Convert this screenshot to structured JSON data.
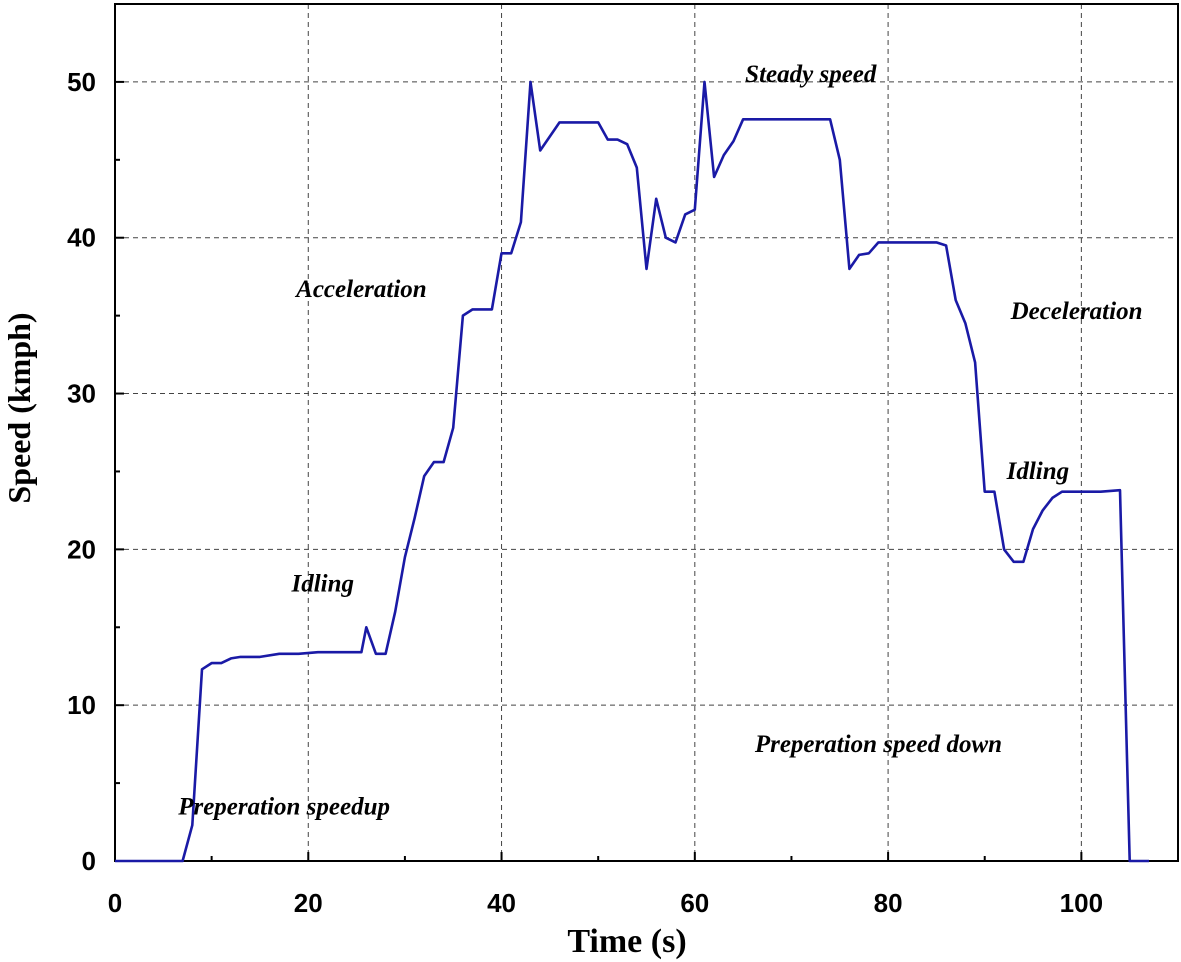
{
  "chart_data": {
    "type": "line",
    "title": "",
    "xlabel": "Time (s)",
    "ylabel": "Speed (kmph)",
    "xlim": [
      0,
      110
    ],
    "ylim": [
      0,
      55
    ],
    "xticks": [
      0,
      20,
      40,
      60,
      80,
      100
    ],
    "yticks": [
      0,
      10,
      20,
      30,
      40,
      50
    ],
    "grid": true,
    "series_color": "#1a1aa6",
    "series": [
      {
        "x": [
          0,
          7,
          8,
          9,
          10,
          11,
          12,
          13,
          15,
          17,
          19,
          21,
          23,
          25,
          25.5,
          26,
          27,
          28,
          29,
          30,
          31,
          32,
          33,
          34,
          35,
          36,
          37,
          38,
          39,
          40,
          41,
          42,
          43,
          44,
          45,
          46,
          47,
          48,
          49,
          50,
          51,
          52,
          53,
          54,
          55,
          56,
          57,
          58,
          59,
          60,
          61,
          62,
          63,
          64,
          65,
          66,
          68,
          70,
          72,
          74,
          75,
          76,
          77,
          78,
          79,
          80,
          82,
          84,
          85,
          86,
          87,
          88,
          89,
          90,
          91,
          92,
          93,
          94,
          95,
          96,
          97,
          98,
          100,
          102,
          104,
          105,
          107
        ],
        "y": [
          0,
          0,
          2.3,
          12.3,
          12.7,
          12.7,
          13.0,
          13.1,
          13.1,
          13.3,
          13.3,
          13.4,
          13.4,
          13.4,
          13.4,
          15.0,
          13.3,
          13.3,
          16.0,
          19.5,
          22.0,
          24.7,
          25.6,
          25.6,
          27.8,
          35.0,
          35.4,
          35.4,
          35.4,
          39.0,
          39.0,
          41.0,
          50.0,
          45.6,
          46.5,
          47.4,
          47.4,
          47.4,
          47.4,
          47.4,
          46.3,
          46.3,
          46.0,
          44.5,
          38.0,
          42.5,
          40.0,
          39.7,
          41.5,
          41.8,
          50.0,
          43.9,
          45.3,
          46.2,
          47.6,
          47.6,
          47.6,
          47.6,
          47.6,
          47.6,
          45.0,
          38.0,
          38.9,
          39.0,
          39.7,
          39.7,
          39.7,
          39.7,
          39.7,
          39.5,
          36.0,
          34.5,
          32.0,
          23.7,
          23.7,
          20.0,
          19.2,
          19.2,
          21.3,
          22.5,
          23.3,
          23.7,
          23.7,
          23.7,
          23.8,
          0,
          0
        ]
      }
    ],
    "annotations": [
      {
        "text": "Steady speed",
        "x": 72,
        "y": 50.0
      },
      {
        "text": "Acceleration",
        "x": 25.5,
        "y": 36.2
      },
      {
        "text": "Deceleration",
        "x": 99.5,
        "y": 34.8
      },
      {
        "text": "Idling",
        "x": 21.5,
        "y": 17.3
      },
      {
        "text": "Idling",
        "x": 95.5,
        "y": 24.5
      },
      {
        "text": "Preperation speed down",
        "x": 79,
        "y": 7.0
      },
      {
        "text": "Preperation speedup",
        "x": 17.5,
        "y": 3.0
      }
    ]
  }
}
